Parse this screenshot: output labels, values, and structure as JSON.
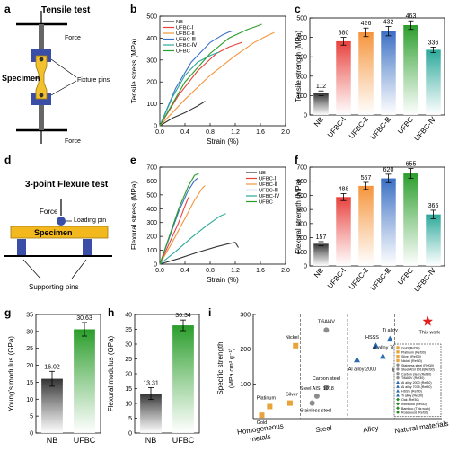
{
  "panel_labels": {
    "a": "a",
    "b": "b",
    "c": "c",
    "d": "d",
    "e": "e",
    "f": "f",
    "g": "g",
    "h": "h",
    "i": "i"
  },
  "schematic_a": {
    "title": "Tensile test",
    "force_top": "Force",
    "force_bottom": "Force",
    "specimen": "Specimen",
    "fixture": "Fixture pins"
  },
  "schematic_d": {
    "title": "3-point Flexure test",
    "force": "Force",
    "loading_pin": "Loading pin",
    "specimen": "Specimen",
    "supporting": "Supporting pins"
  },
  "colors": {
    "NB": "#333333",
    "UFBC-I": "#e8413c",
    "UFBC-II": "#f5943a",
    "UFBC-III": "#3a6fc4",
    "UFBC-IV": "#2aa89a",
    "UFBC": "#2a9d2a",
    "metal": "#e8a33a",
    "steel": "#8c8c8c",
    "alloy": "#2b6cb0",
    "natural": "#2a8a2a",
    "star": "#e02020"
  },
  "chart_data": [
    {
      "id": "b",
      "type": "line",
      "xlabel": "Strain (%)",
      "ylabel": "Tensile stress (MPa)",
      "xlim": [
        0,
        2.0
      ],
      "ylim": [
        0,
        500
      ],
      "xticks": [
        0.0,
        0.4,
        0.8,
        1.2,
        1.6,
        2.0
      ],
      "yticks": [
        0,
        100,
        200,
        300,
        400,
        500
      ],
      "legend": "top-left",
      "series": [
        {
          "name": "NB",
          "key": "NB",
          "x": [
            0,
            0.2,
            0.4,
            0.5,
            0.6,
            0.7,
            0.72
          ],
          "y": [
            0,
            35,
            60,
            75,
            90,
            108,
            112
          ]
        },
        {
          "name": "UFBC-Ⅰ",
          "key": "UFBC-I",
          "x": [
            0,
            0.3,
            0.6,
            0.9,
            1.1,
            1.25,
            1.3
          ],
          "y": [
            0,
            140,
            250,
            330,
            360,
            375,
            380
          ]
        },
        {
          "name": "UFBC-Ⅱ",
          "key": "UFBC-II",
          "x": [
            0,
            0.4,
            0.8,
            1.2,
            1.5,
            1.7,
            1.82
          ],
          "y": [
            0,
            120,
            230,
            320,
            380,
            410,
            426
          ]
        },
        {
          "name": "UFBC-Ⅲ",
          "key": "UFBC-III",
          "x": [
            0,
            0.25,
            0.5,
            0.8,
            1.0,
            1.1,
            1.15
          ],
          "y": [
            0,
            170,
            290,
            380,
            415,
            428,
            432
          ]
        },
        {
          "name": "UFBC-Ⅳ",
          "key": "UFBC-IV",
          "x": [
            0,
            0.2,
            0.4,
            0.6,
            0.8,
            0.9,
            0.95
          ],
          "y": [
            0,
            130,
            230,
            290,
            320,
            332,
            336
          ]
        },
        {
          "name": "UFBC",
          "key": "UFBC",
          "x": [
            0,
            0.4,
            0.8,
            1.1,
            1.4,
            1.55,
            1.62
          ],
          "y": [
            0,
            200,
            330,
            400,
            440,
            455,
            463
          ]
        }
      ]
    },
    {
      "id": "c",
      "type": "bar",
      "ylabel": "Tensile strength (MPa)",
      "ylim": [
        0,
        500
      ],
      "yticks": [
        0,
        100,
        200,
        300,
        400,
        500
      ],
      "categories": [
        "NB",
        "UFBC-Ⅰ",
        "UFBC-Ⅱ",
        "UFBC-Ⅲ",
        "UFBC",
        "UFBC-Ⅳ"
      ],
      "keys": [
        "NB",
        "UFBC-I",
        "UFBC-II",
        "UFBC-III",
        "UFBC",
        "UFBC-IV"
      ],
      "values": [
        112,
        380,
        426,
        432,
        463,
        336
      ],
      "errors": [
        12,
        20,
        22,
        24,
        22,
        14
      ],
      "labels": [
        "112",
        "380",
        "426",
        "432",
        "463",
        "336"
      ]
    },
    {
      "id": "e",
      "type": "line",
      "xlabel": "Strain (%)",
      "ylabel": "Flexural stress (MPa)",
      "xlim": [
        0,
        2.0
      ],
      "ylim": [
        0,
        700
      ],
      "xticks": [
        0.0,
        0.4,
        0.8,
        1.2,
        1.6,
        2.0
      ],
      "yticks": [
        0,
        100,
        200,
        300,
        400,
        500,
        600,
        700
      ],
      "legend": "top-right",
      "series": [
        {
          "name": "NB",
          "key": "NB",
          "x": [
            0,
            0.3,
            0.6,
            0.9,
            1.1,
            1.2,
            1.25
          ],
          "y": [
            0,
            40,
            85,
            125,
            148,
            157,
            120
          ]
        },
        {
          "name": "UFBC-Ⅰ",
          "key": "UFBC-I",
          "x": [
            0,
            0.15,
            0.3,
            0.4,
            0.45,
            0.47
          ],
          "y": [
            0,
            150,
            300,
            420,
            475,
            488
          ]
        },
        {
          "name": "UFBC-Ⅱ",
          "key": "UFBC-II",
          "x": [
            0,
            0.2,
            0.4,
            0.55,
            0.68,
            0.72
          ],
          "y": [
            0,
            160,
            330,
            460,
            550,
            567
          ]
        },
        {
          "name": "UFBC-Ⅲ",
          "key": "UFBC-III",
          "x": [
            0,
            0.15,
            0.3,
            0.45,
            0.55,
            0.6
          ],
          "y": [
            0,
            190,
            380,
            530,
            600,
            620
          ]
        },
        {
          "name": "UFBC-Ⅳ",
          "key": "UFBC-IV",
          "x": [
            0,
            0.25,
            0.5,
            0.75,
            0.95,
            1.05
          ],
          "y": [
            0,
            90,
            190,
            280,
            345,
            365
          ]
        },
        {
          "name": "UFBC",
          "key": "UFBC",
          "x": [
            0,
            0.15,
            0.3,
            0.45,
            0.55,
            0.62
          ],
          "y": [
            0,
            200,
            400,
            560,
            640,
            655
          ]
        }
      ]
    },
    {
      "id": "f",
      "type": "bar",
      "ylabel": "Flexural strength (MPa)",
      "ylim": [
        0,
        700
      ],
      "yticks": [
        0,
        100,
        200,
        300,
        400,
        500,
        600,
        700
      ],
      "categories": [
        "NB",
        "UFBC-Ⅰ",
        "UFBC-Ⅱ",
        "UFBC-Ⅲ",
        "UFBC",
        "UFBC-Ⅳ"
      ],
      "keys": [
        "NB",
        "UFBC-I",
        "UFBC-II",
        "UFBC-III",
        "UFBC",
        "UFBC-IV"
      ],
      "values": [
        157,
        488,
        567,
        620,
        655,
        365
      ],
      "errors": [
        15,
        25,
        25,
        30,
        35,
        30
      ],
      "labels": [
        "157",
        "488",
        "567",
        "620",
        "655",
        "365"
      ]
    },
    {
      "id": "g",
      "type": "bar",
      "ylabel": "Young's modulus (GPa)",
      "ylim": [
        0,
        35
      ],
      "yticks": [
        0,
        5,
        10,
        15,
        20,
        25,
        30,
        35
      ],
      "categories": [
        "NB",
        "UFBC"
      ],
      "keys": [
        "NB",
        "UFBC"
      ],
      "values": [
        16.02,
        30.63
      ],
      "errors": [
        2.2,
        2.0
      ],
      "labels": [
        "16.02",
        "30.63"
      ]
    },
    {
      "id": "h",
      "type": "bar",
      "ylabel": "Flexural modulus (GPa)",
      "ylim": [
        0,
        40
      ],
      "yticks": [
        0,
        5,
        10,
        15,
        20,
        25,
        30,
        35,
        40
      ],
      "categories": [
        "NB",
        "UFBC"
      ],
      "keys": [
        "NB",
        "UFBC"
      ],
      "values": [
        13.31,
        36.34
      ],
      "errors": [
        2.0,
        1.8
      ],
      "labels": [
        "13.31",
        "36.34"
      ]
    },
    {
      "id": "i",
      "type": "scatter",
      "ylabel": "Specific strength",
      "ylabel_unit": "(MPa cm³ g⁻¹)",
      "ylim": [
        0,
        300
      ],
      "yticks": [
        100,
        200,
        300
      ],
      "groups": [
        "Homogeneous metals",
        "Steel",
        "Alloy",
        "Natural materials"
      ],
      "group_lines": [
        "Homogeneous",
        "metals"
      ],
      "points": [
        {
          "label": "Gold",
          "group": 0,
          "gx": 0.18,
          "y": 10,
          "kind": "metal",
          "text_dx": 0,
          "text_dy": 10
        },
        {
          "label": "Platinum",
          "group": 0,
          "gx": 0.35,
          "y": 35,
          "kind": "metal",
          "text_dx": -4,
          "text_dy": -8
        },
        {
          "label": "Silver",
          "group": 0,
          "gx": 0.78,
          "y": 45,
          "kind": "metal",
          "text_dx": 2,
          "text_dy": -8
        },
        {
          "label": "Nickel",
          "group": 0,
          "gx": 0.9,
          "y": 210,
          "kind": "metal",
          "text_dx": -4,
          "text_dy": -8
        },
        {
          "label": "Ti6Al4V",
          "group": 1,
          "gx": 0.55,
          "y": 255,
          "kind": "steel",
          "text_dx": 0,
          "text_dy": -8
        },
        {
          "label": "Carbon steel",
          "group": 1,
          "gx": 0.55,
          "y": 90,
          "kind": "steel",
          "text_dx": 0,
          "text_dy": -8
        },
        {
          "label": "Steel AISI 1018",
          "group": 1,
          "gx": 0.35,
          "y": 65,
          "kind": "steel",
          "text_dx": 0,
          "text_dy": -7
        },
        {
          "label": "Stainless steel",
          "group": 1,
          "gx": 0.25,
          "y": 45,
          "kind": "steel",
          "text_dx": 4,
          "text_dy": 10
        },
        {
          "label": "Ti alloy",
          "group": 2,
          "gx": 0.9,
          "y": 230,
          "kind": "alloy",
          "text_dx": 0,
          "text_dy": -8
        },
        {
          "label": "HSSS",
          "group": 2,
          "gx": 0.6,
          "y": 210,
          "kind": "alloy",
          "text_dx": -4,
          "text_dy": -8
        },
        {
          "label": "Al alloy 7075",
          "group": 2,
          "gx": 0.75,
          "y": 180,
          "kind": "alloy",
          "text_dx": 4,
          "text_dy": -8
        },
        {
          "label": "Al alloy 2000",
          "group": 2,
          "gx": 0.2,
          "y": 170,
          "kind": "alloy",
          "text_dx": 6,
          "text_dy": 12
        },
        {
          "label": "Rosewood",
          "group": 3,
          "gx": 0.42,
          "y": 160,
          "kind": "natural",
          "text_dx": 0,
          "text_dy": -8
        },
        {
          "label": "Bamboo",
          "group": 3,
          "gx": 0.25,
          "y": 135,
          "kind": "natural",
          "text_dx": 0,
          "text_dy": -8
        },
        {
          "label": "Ironwood",
          "group": 3,
          "gx": 0.12,
          "y": 115,
          "kind": "natural",
          "text_dx": 2,
          "text_dy": -8
        },
        {
          "label": "Oak",
          "group": 3,
          "gx": 0.08,
          "y": 85,
          "kind": "natural",
          "text_dx": 4,
          "text_dy": -6
        },
        {
          "label": "This work",
          "group": 3,
          "gx": 0.7,
          "y": 280,
          "kind": "star",
          "text_dx": 2,
          "text_dy": 14
        }
      ],
      "legend": {
        "placement": "right",
        "entries": [
          {
            "label": "Gold (Ref30)",
            "kind": "metal"
          },
          {
            "label": "Platinum (Ref30)",
            "kind": "metal"
          },
          {
            "label": "Silver (Ref30)",
            "kind": "metal"
          },
          {
            "label": "Nickel (Ref30)",
            "kind": "metal"
          },
          {
            "label": "Stainless steel (Ref30)",
            "kind": "steel"
          },
          {
            "label": "Steel AISI 1018(Ref30)",
            "kind": "steel"
          },
          {
            "label": "Carbon steel (Ref30)",
            "kind": "steel"
          },
          {
            "label": "Ti6Al4V (Ref30)",
            "kind": "steel"
          },
          {
            "label": "Al alloy 2000 (Ref30)",
            "kind": "alloy"
          },
          {
            "label": "Al alloy 7075 (Ref30)",
            "kind": "alloy"
          },
          {
            "label": "HSSS (Ref30)",
            "kind": "alloy"
          },
          {
            "label": "Ti alloy (Ref30)",
            "kind": "alloy"
          },
          {
            "label": "Oak (Ref30)",
            "kind": "natural"
          },
          {
            "label": "Ironwood (Ref30)",
            "kind": "natural"
          },
          {
            "label": "Bamboo (This work)",
            "kind": "natural"
          },
          {
            "label": "Rosewood (Ref30)",
            "kind": "natural"
          }
        ]
      }
    }
  ]
}
